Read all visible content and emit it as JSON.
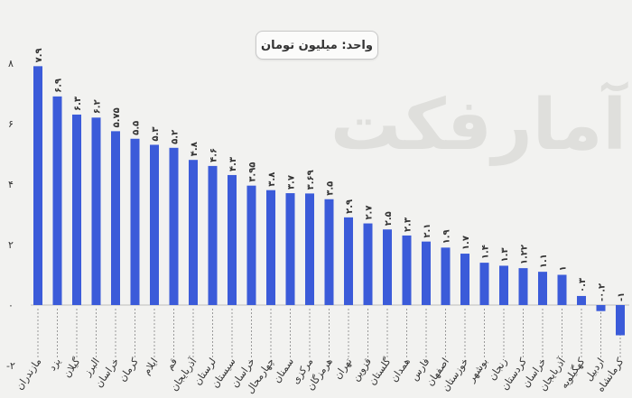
{
  "unit_label": "واحد: میلیون تومان",
  "watermark": "آمارفکت",
  "colors": {
    "bar": "#3b5bd9",
    "text": "#333333",
    "background": "#f2f2f0"
  },
  "chart_data": {
    "type": "bar",
    "title": "",
    "xlabel": "",
    "ylabel": "",
    "ylim": [
      -2,
      8
    ],
    "yticks": [
      "-۲",
      "۰",
      "۲",
      "۴",
      "۶",
      "۸"
    ],
    "ytick_values": [
      -2,
      0,
      2,
      4,
      6,
      8
    ],
    "grid": false,
    "categories": [
      "مازندران",
      "یزد",
      "گیلان",
      "البرز",
      "خراسان",
      "کرمان",
      "ایلام",
      "قم",
      "آذربایجان",
      "لرستان",
      "سیستان",
      "خراسان",
      "چهارمحال",
      "سمنان",
      "مرکزی",
      "هرمزگان",
      "تهران",
      "قزوین",
      "گلستان",
      "همدان",
      "فارس",
      "اصفهان",
      "خوزستان",
      "بوشهر",
      "زنجان",
      "کردستان",
      "خراسان",
      "آذربایجان",
      "کهگیلویه",
      "اردبیل",
      "کرمانشاه"
    ],
    "values": [
      7.9,
      6.9,
      6.3,
      6.2,
      5.75,
      5.5,
      5.3,
      5.2,
      4.8,
      4.6,
      4.3,
      3.95,
      3.8,
      3.7,
      3.69,
      3.5,
      2.9,
      2.7,
      2.5,
      2.3,
      2.1,
      1.9,
      1.7,
      1.4,
      1.3,
      1.22,
      1.1,
      1.0,
      0.3,
      -0.2,
      -1.0
    ],
    "value_labels": [
      "۷.۹",
      "۶.۹",
      "۶.۳",
      "۶.۲",
      "۵.۷۵",
      "۵.۵",
      "۵.۳",
      "۵.۲",
      "۴.۸",
      "۴.۶",
      "۴.۳",
      "۳.۹۵",
      "۳.۸",
      "۳.۷",
      "۳.۶۹",
      "۳.۵",
      "۲.۹",
      "۲.۷",
      "۲.۵",
      "۲.۳",
      "۲.۱",
      "۱.۹",
      "۱.۷",
      "۱.۴",
      "۱.۳",
      "۱.۲۲",
      "۱.۱",
      "۱",
      "۰.۳",
      "-۰.۲",
      "-۱"
    ]
  }
}
